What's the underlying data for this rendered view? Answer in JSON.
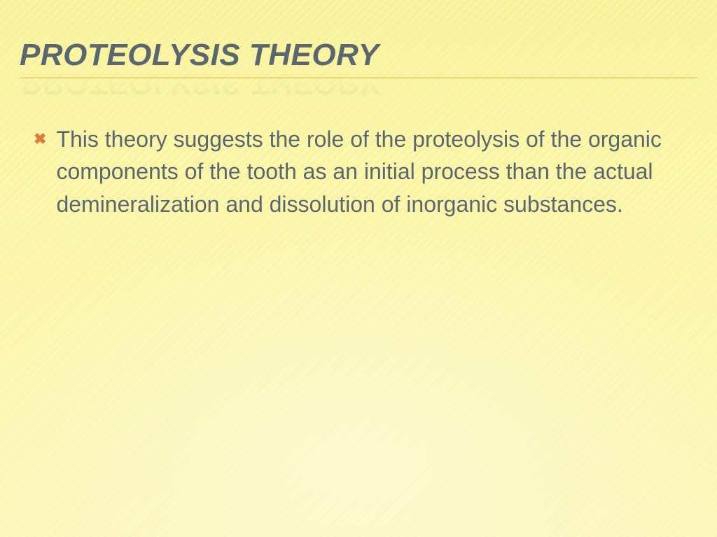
{
  "slide": {
    "title": "Proteolysis Theory",
    "title_color": "#5b6770",
    "title_fontsize": 44,
    "underline_color": "#e8a23a",
    "background_gradient_top": "#f8f296",
    "background_gradient_bottom": "#fdf6b5",
    "bullets": [
      {
        "marker": "✖",
        "marker_color": "#e07a3f",
        "text": "This theory suggests the role of the proteolysis of the organic components of the tooth as an initial process than the actual demineralization and dissolution of inorganic substances."
      }
    ],
    "body_text_color": "#5b6770",
    "body_fontsize": 32
  }
}
